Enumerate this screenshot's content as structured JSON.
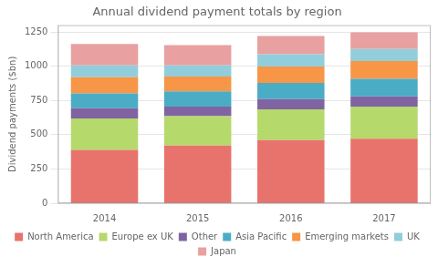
{
  "chart_data": {
    "type": "bar",
    "stacked": true,
    "title": "Annual dividend payment totals by region",
    "ylabel": "Dividend payments ($bn)",
    "categories": [
      "2014",
      "2015",
      "2016",
      "2017"
    ],
    "series": [
      {
        "name": "North America",
        "color": "#e8736c",
        "values": [
          390,
          420,
          460,
          470
        ]
      },
      {
        "name": "Europe ex UK",
        "color": "#b5d96b",
        "values": [
          228,
          215,
          225,
          235
        ]
      },
      {
        "name": "Other",
        "color": "#8064a2",
        "values": [
          75,
          70,
          75,
          75
        ]
      },
      {
        "name": "Asia Pacific",
        "color": "#4bacc6",
        "values": [
          108,
          112,
          118,
          128
        ]
      },
      {
        "name": "Emerging markets",
        "color": "#f79646",
        "values": [
          118,
          108,
          120,
          130
        ]
      },
      {
        "name": "UK",
        "color": "#92cddc",
        "values": [
          88,
          82,
          90,
          88
        ]
      },
      {
        "name": "Japan",
        "color": "#e8a0a0",
        "values": [
          155,
          148,
          132,
          122
        ]
      }
    ],
    "ylim": [
      0,
      1300
    ],
    "yticks": [
      0,
      250,
      500,
      750,
      1000,
      1250
    ],
    "grid": true,
    "legend": "bottom"
  }
}
